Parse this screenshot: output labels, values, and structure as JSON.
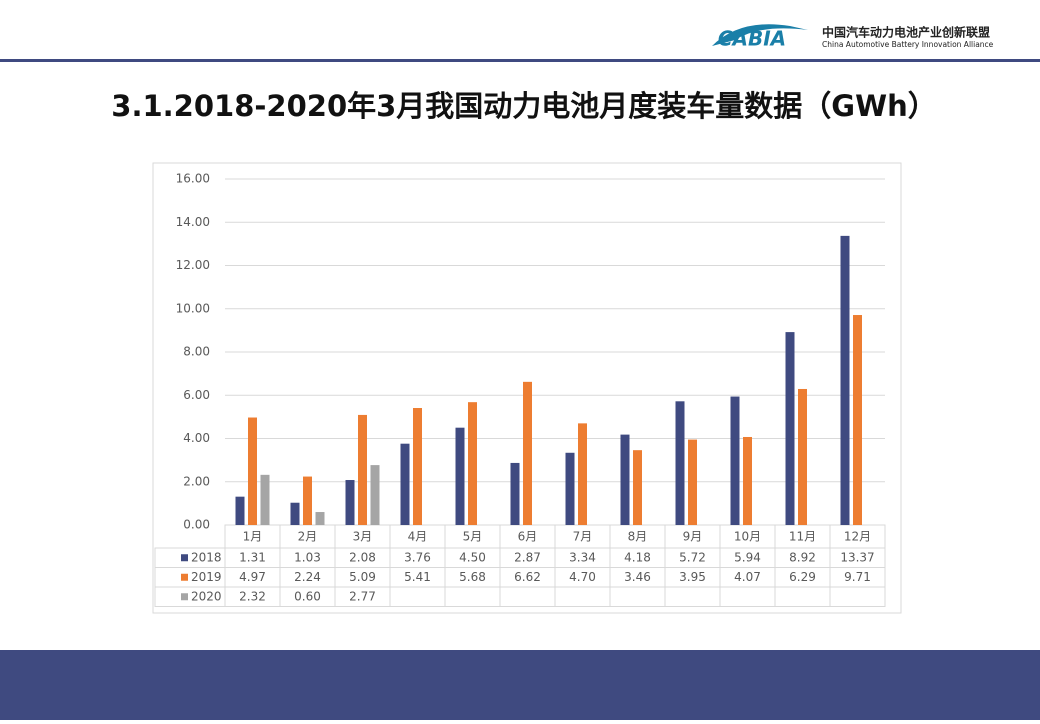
{
  "header": {
    "logo": "CABIA",
    "org_cn": "中国汽车动力电池产业创新联盟",
    "org_en": "China Automotive Battery Innovation Alliance"
  },
  "chart_data": {
    "type": "bar",
    "title": "3.1.2018-2020年3月我国动力电池月度装车量数据（GWh）",
    "categories": [
      "1月",
      "2月",
      "3月",
      "4月",
      "5月",
      "6月",
      "7月",
      "8月",
      "9月",
      "10月",
      "11月",
      "12月"
    ],
    "series": [
      {
        "name": "2018",
        "color": "#3f4a80",
        "values": [
          1.31,
          1.03,
          2.08,
          3.76,
          4.5,
          2.87,
          3.34,
          4.18,
          5.72,
          5.94,
          8.92,
          13.37
        ],
        "value_labels": [
          "1.31",
          "1.03",
          "2.08",
          "3.76",
          "4.50",
          "2.87",
          "3.34",
          "4.18",
          "5.72",
          "5.94",
          "8.92",
          "13.37"
        ]
      },
      {
        "name": "2019",
        "color": "#ed7d31",
        "values": [
          4.97,
          2.24,
          5.09,
          5.41,
          5.68,
          6.62,
          4.7,
          3.46,
          3.95,
          4.07,
          6.29,
          9.71
        ],
        "value_labels": [
          "4.97",
          "2.24",
          "5.09",
          "5.41",
          "5.68",
          "6.62",
          "4.70",
          "3.46",
          "3.95",
          "4.07",
          "6.29",
          "9.71"
        ]
      },
      {
        "name": "2020",
        "color": "#a5a5a5",
        "values": [
          2.32,
          0.6,
          2.77,
          null,
          null,
          null,
          null,
          null,
          null,
          null,
          null,
          null
        ],
        "value_labels": [
          "2.32",
          "0.60",
          "2.77",
          null,
          null,
          null,
          null,
          null,
          null,
          null,
          null,
          null
        ]
      }
    ],
    "ylim": [
      0,
      16
    ],
    "yticks": [
      {
        "value": 0,
        "label": "0.00"
      },
      {
        "value": 2,
        "label": "2.00"
      },
      {
        "value": 4,
        "label": "4.00"
      },
      {
        "value": 6,
        "label": "6.00"
      },
      {
        "value": 8,
        "label": "8.00"
      },
      {
        "value": 10,
        "label": "10.00"
      },
      {
        "value": 12,
        "label": "12.00"
      },
      {
        "value": 14,
        "label": "14.00"
      },
      {
        "value": 16,
        "label": "16.00"
      }
    ],
    "grid": true
  }
}
